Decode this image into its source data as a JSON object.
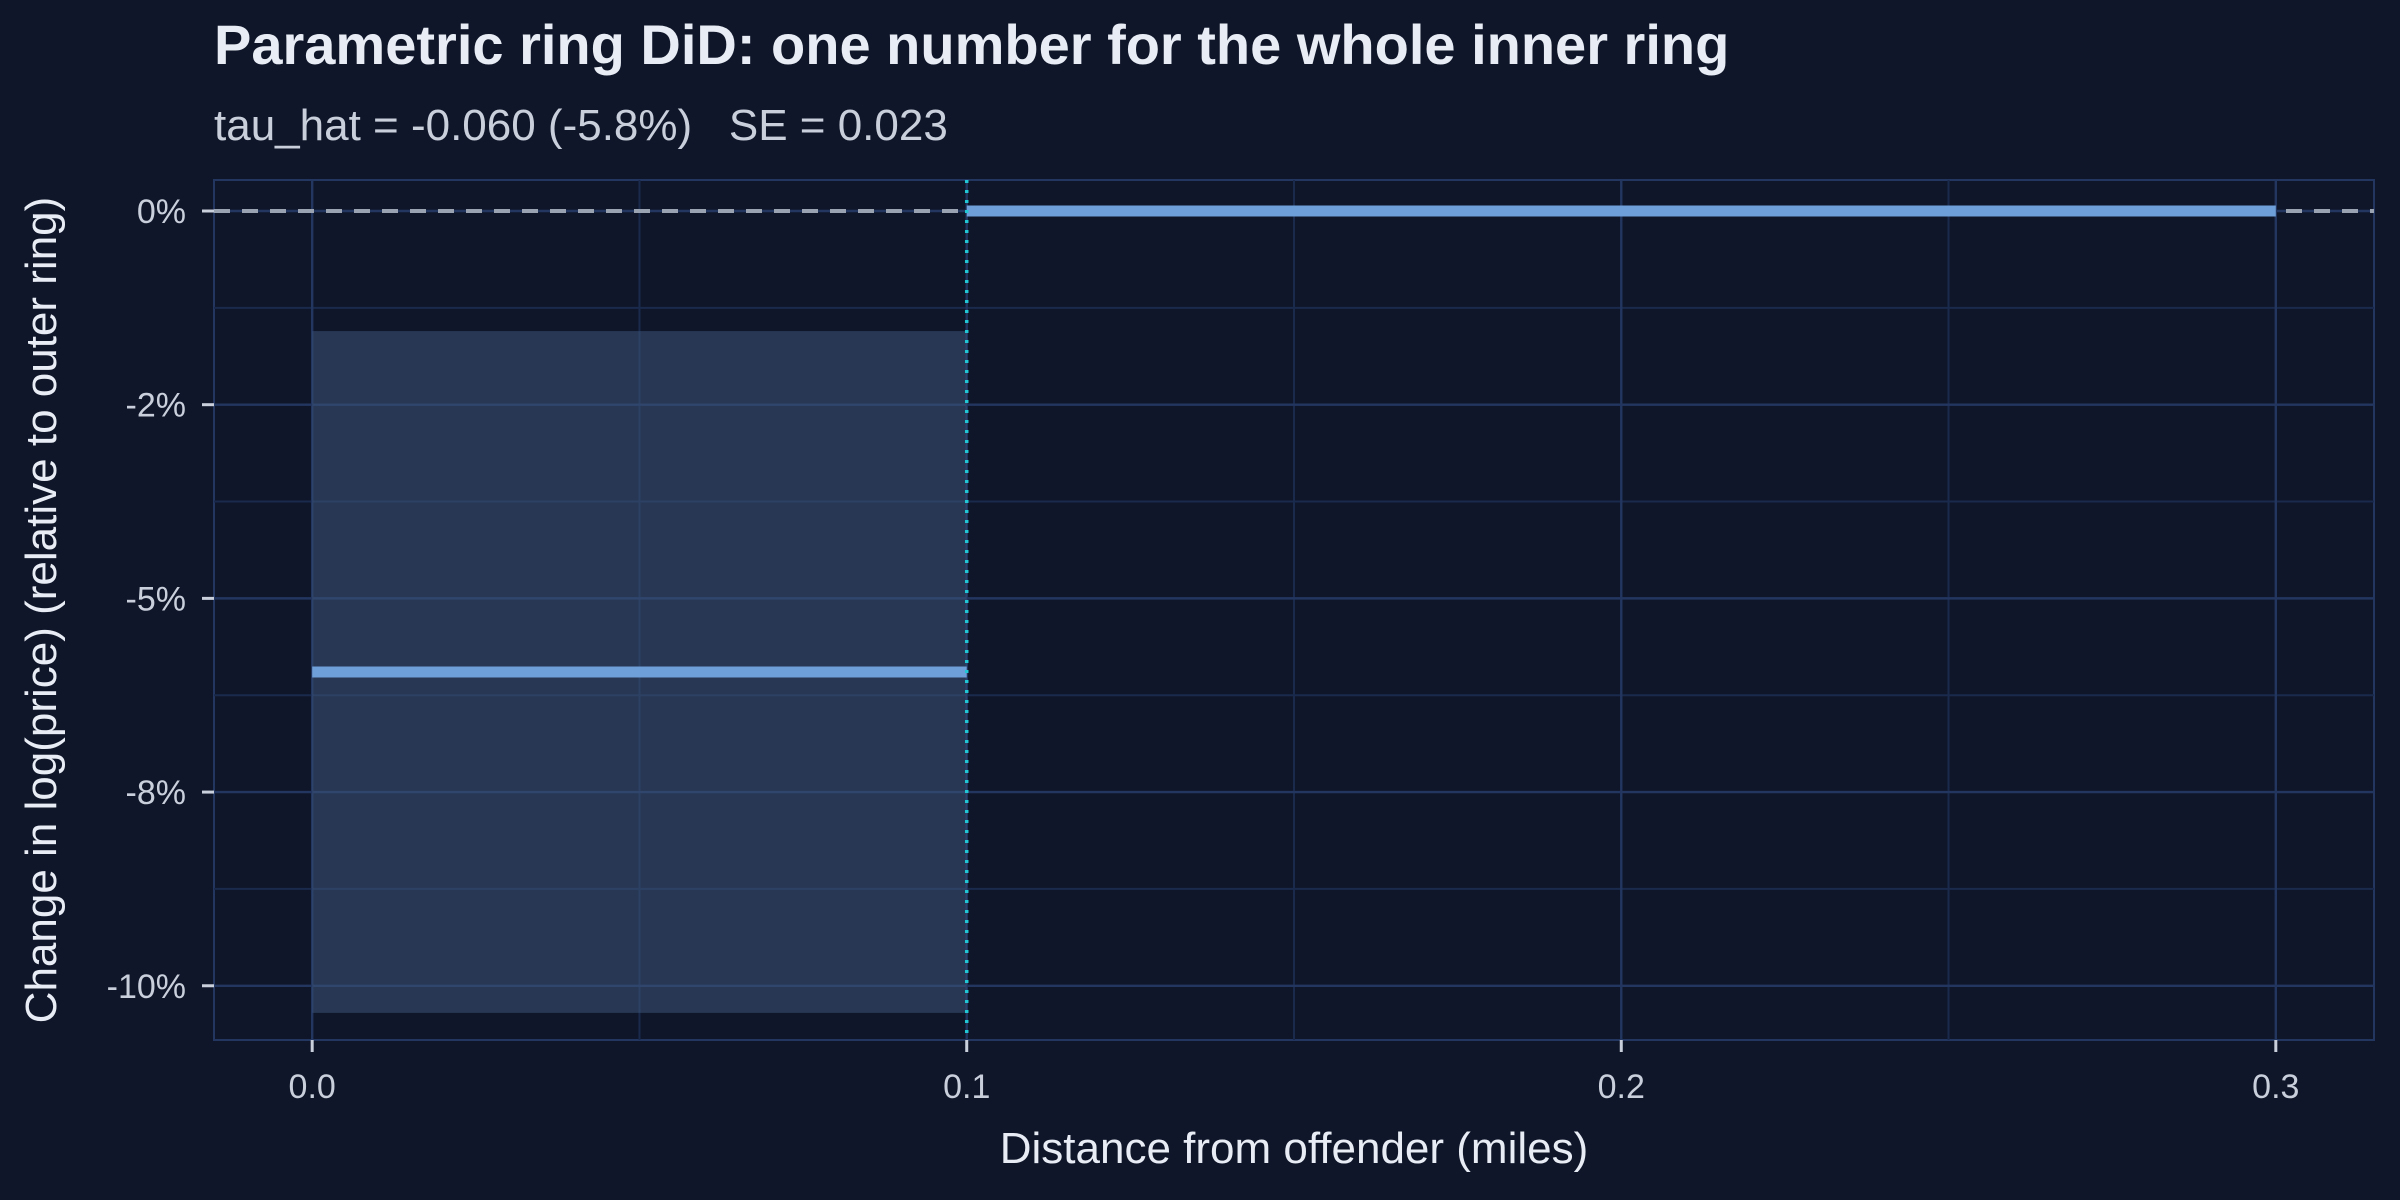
{
  "chart_data": {
    "type": "line",
    "title": "Parametric ring DiD: one number for the whole inner ring",
    "subtitle": "tau_hat = -0.060 (-5.8%)   SE = 0.023",
    "xlabel": "Distance from offender (miles)",
    "ylabel": "Change in log(price) (relative to outer ring)",
    "xlim": [
      -0.015,
      0.315
    ],
    "ylim": [
      -10.7,
      0.4
    ],
    "x_ticks": [
      0.0,
      0.1,
      0.2,
      0.3
    ],
    "x_tick_labels": [
      "0.0",
      "0.1",
      "0.2",
      "0.3"
    ],
    "y_ticks": [
      0,
      -2.5,
      -5,
      -7.5,
      -10
    ],
    "y_tick_labels": [
      "0%",
      "-2%",
      "-5%",
      "-8%",
      "-10%"
    ],
    "grid": true,
    "reference_line": {
      "y": 0,
      "style": "dashed",
      "color": "#9aa3b2"
    },
    "cutoff_line": {
      "x": 0.1,
      "style": "dotted",
      "color": "#22c7d6"
    },
    "series": [
      {
        "segments": [
          {
            "x": [
              0.0,
              0.1
            ],
            "y": [
              -5.95,
              -5.95
            ]
          },
          {
            "x": [
              0.1,
              0.3
            ],
            "y": [
              0,
              0
            ]
          }
        ],
        "color": "#6f9fd8"
      }
    ],
    "confidence_band": {
      "x": [
        0.0,
        0.1
      ],
      "y_low": [
        -10.35,
        -10.35
      ],
      "y_high": [
        -1.55,
        -1.55
      ],
      "color": "#3d5478"
    },
    "colors": {
      "background": "#0f1629",
      "panel": "#0f1629",
      "grid_major": "#233660",
      "grid_minor": "#1a2a4d",
      "text": "#e8ecf4",
      "subtext": "#c9cfdb"
    }
  }
}
